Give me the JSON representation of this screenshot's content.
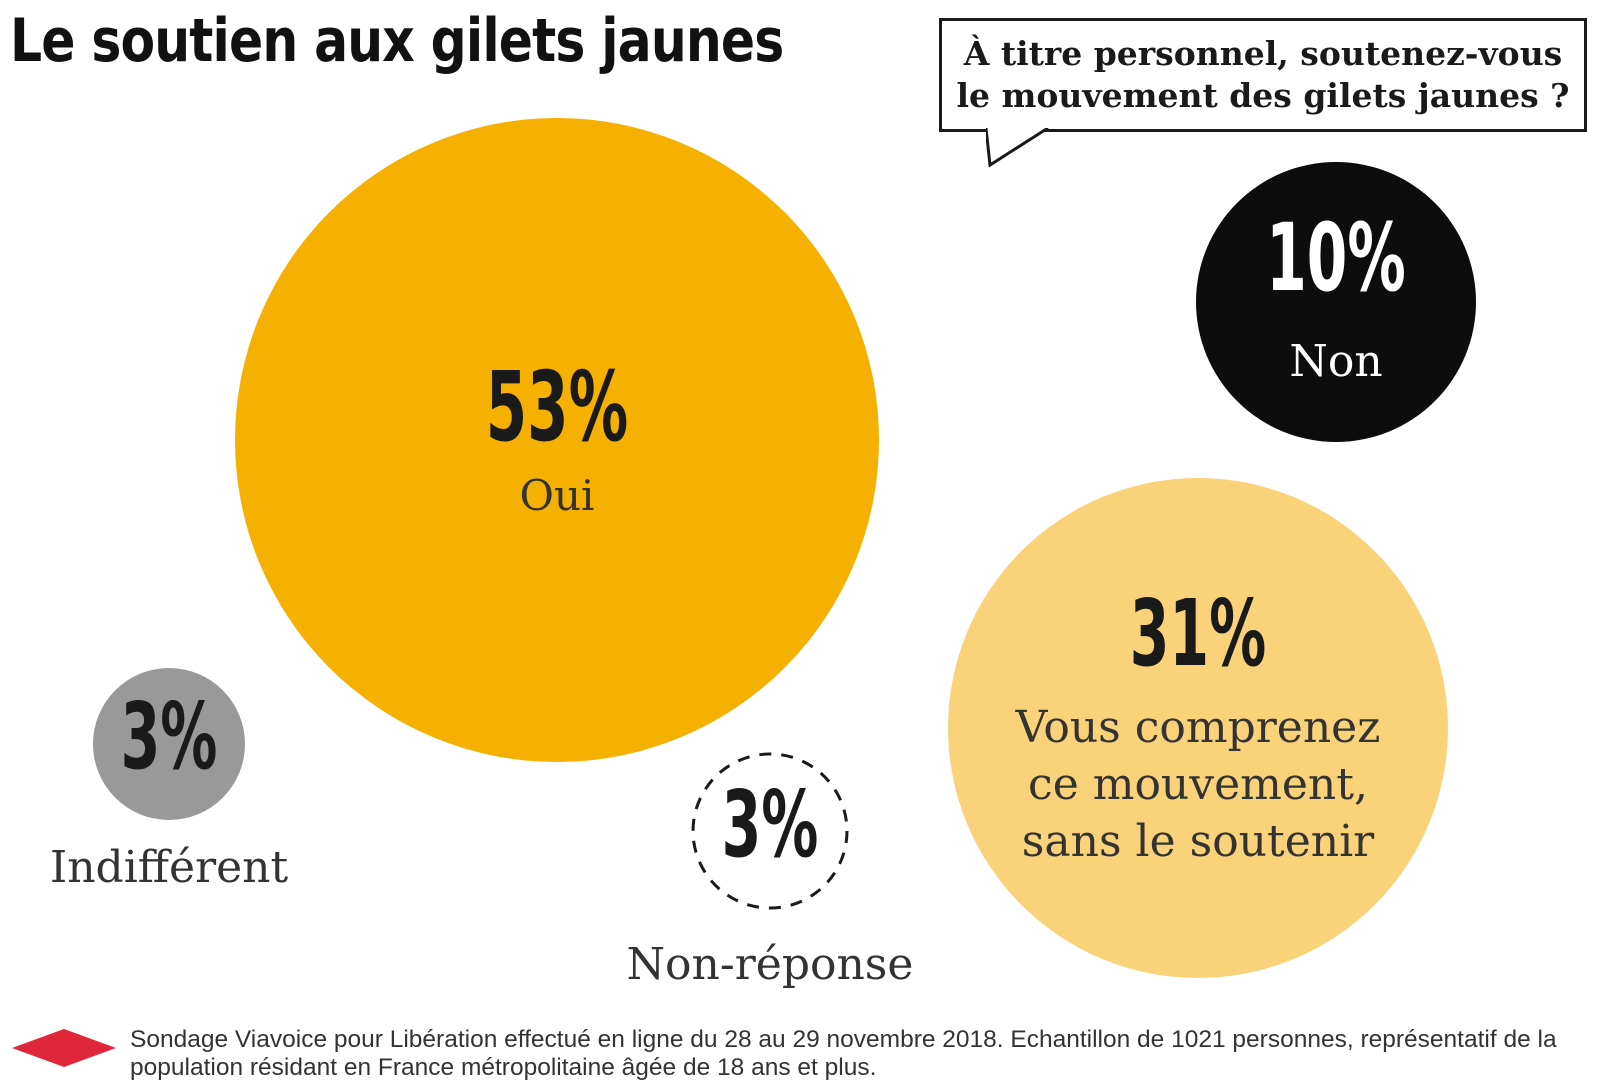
{
  "title": "Le soutien aux gilets jaunes",
  "question": "À titre personnel, soutenez-vous le mouvement des gilets jaunes ?",
  "source": "Sondage Viavoice pour Libération effectué en ligne du 28 au 29 novembre 2018. Echantillon de 1021 personnes, représentatif de la population résidant en France métropolitaine âgée de 18 ans et plus.",
  "colors": {
    "oui": "#f6b001",
    "non": "#0d0d0d",
    "comprenez": "#f9d27a",
    "indifferent": "#999999",
    "non_reponse": "#ffffff",
    "logo": "#e0263a"
  },
  "chart_data": {
    "type": "bubble",
    "title": "Le soutien aux gilets jaunes",
    "subtitle": "À titre personnel, soutenez-vous le mouvement des gilets jaunes ?",
    "unit": "%",
    "categories": [
      "Oui",
      "Non",
      "Vous comprenez ce mouvement, sans le soutenir",
      "Indifférent",
      "Non-réponse"
    ],
    "values": [
      53,
      10,
      31,
      3,
      3
    ],
    "labels": [
      "53%",
      "10%",
      "31%",
      "3%",
      "3%"
    ]
  }
}
